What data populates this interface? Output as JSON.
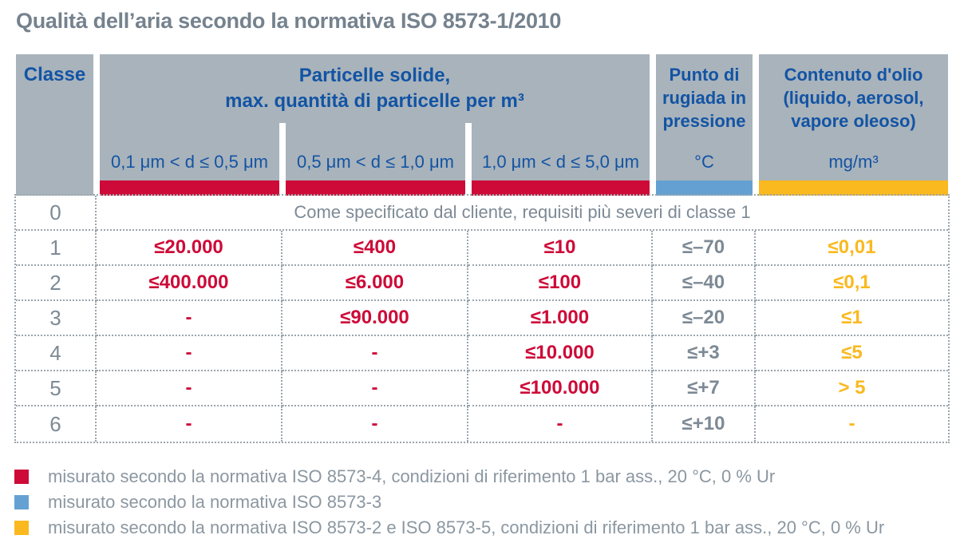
{
  "title": "Qualità dell’aria secondo la normativa ISO 8573-1/2010",
  "colors": {
    "header_bg": "#a9b3bb",
    "header_text": "#1254a4",
    "red": "#cd0a38",
    "blue": "#64a1d2",
    "yellow": "#f9b91f",
    "title_text": "#75828e",
    "body_text": "#7d8a95",
    "dotted_border": "#9aa5ad",
    "legend_text": "#8b97a1"
  },
  "header": {
    "classe": "Classe",
    "particles_line1": "Particelle solide,",
    "particles_line2": "max. quantità di particelle per m³",
    "particle_ranges": [
      "0,1 μm < d ≤ 0,5 μm",
      "0,5 μm < d ≤ 1,0 μm",
      "1,0 μm < d ≤ 5,0 μm"
    ],
    "dew_point": "Punto di rugiada in pressione",
    "dew_unit": "°C",
    "oil": "Contenuto d'olio (liquido, aerosol, vapore oleoso)",
    "oil_unit": "mg/m³"
  },
  "chart_data": {
    "type": "table",
    "title": "Qualità dell’aria secondo la normativa ISO 8573-1/2010",
    "columns": [
      "Classe",
      "Particelle solide, max. quantità di particelle per m³ — 0,1 μm < d ≤ 0,5 μm",
      "Particelle solide, max. quantità di particelle per m³ — 0,5 μm < d ≤ 1,0 μm",
      "Particelle solide, max. quantità di particelle per m³ — 1,0 μm < d ≤ 5,0 μm",
      "Punto di rugiada in pressione (°C)",
      "Contenuto d'olio (liquido, aerosol, vapore oleoso) (mg/m³)"
    ],
    "rows": [
      [
        "0",
        "Come specificato dal cliente, requisiti più severi di classe 1"
      ],
      [
        "1",
        "≤20.000",
        "≤400",
        "≤10",
        "≤–70",
        "≤0,01"
      ],
      [
        "2",
        "≤400.000",
        "≤6.000",
        "≤100",
        "≤–40",
        "≤0,1"
      ],
      [
        "3",
        "-",
        "≤90.000",
        "≤1.000",
        "≤–20",
        "≤1"
      ],
      [
        "4",
        "-",
        "-",
        "≤10.000",
        "≤+3",
        "≤5"
      ],
      [
        "5",
        "-",
        "-",
        "≤100.000",
        "≤+7",
        "> 5"
      ],
      [
        "6",
        "-",
        "-",
        "-",
        "≤+10",
        "-"
      ]
    ]
  },
  "legend": [
    {
      "color": "#cd0a38",
      "label": "misurato secondo la normativa ISO 8573-4, condizioni di riferimento 1 bar ass., 20 °C, 0 % Ur"
    },
    {
      "color": "#64a1d2",
      "label": "misurato secondo la normativa ISO 8573-3"
    },
    {
      "color": "#f9b91f",
      "label": "misurato secondo la normativa ISO 8573-2 e ISO 8573-5, condizioni di riferimento 1 bar ass., 20 °C, 0 % Ur"
    }
  ]
}
